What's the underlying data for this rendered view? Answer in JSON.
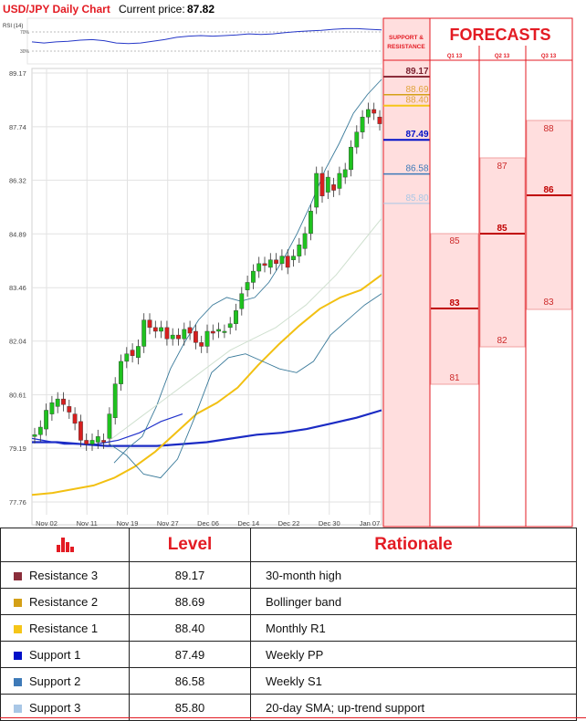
{
  "header": {
    "title": "USD/JPY Daily Chart",
    "price_label": "Current price:",
    "price_value": "87.82"
  },
  "colors": {
    "accent": "#e31b23",
    "resistance3": "#8b2e3b",
    "resistance2": "#d4a017",
    "resistance1": "#f5c518",
    "support1": "#0010c8",
    "support2": "#3e7ab8",
    "support3": "#a9c7e6"
  },
  "rsi": {
    "label": "RSI (14)",
    "upper_tick": "70%",
    "lower_tick": "30%"
  },
  "panel": {
    "sr_header_line1": "SUPPORT &",
    "sr_header_line2": "RESISTANCE",
    "forecasts_title": "FORECASTS",
    "quarters": [
      "Q1 13",
      "Q2 13",
      "Q3 13"
    ]
  },
  "chart_data": {
    "type": "candlestick",
    "title": "USD/JPY Daily Chart",
    "y_ticks": [
      "89.17",
      "87.74",
      "86.32",
      "84.89",
      "83.46",
      "82.04",
      "80.61",
      "79.19",
      "77.76"
    ],
    "x_ticks": [
      "Nov 02",
      "Nov 11",
      "Nov 19",
      "Nov 27",
      "Dec 06",
      "Dec 14",
      "Dec 22",
      "Dec 30",
      "Jan 07"
    ],
    "ylim": [
      77.76,
      89.17
    ],
    "candles": [
      {
        "o": 79.5,
        "c": 79.55
      },
      {
        "o": 79.55,
        "c": 79.75
      },
      {
        "o": 79.7,
        "c": 80.2
      },
      {
        "o": 80.1,
        "c": 80.4
      },
      {
        "o": 80.3,
        "c": 80.5
      },
      {
        "o": 80.5,
        "c": 80.35
      },
      {
        "o": 80.3,
        "c": 80.15
      },
      {
        "o": 80.1,
        "c": 79.85
      },
      {
        "o": 79.9,
        "c": 79.4
      },
      {
        "o": 79.4,
        "c": 79.3
      },
      {
        "o": 79.3,
        "c": 79.4
      },
      {
        "o": 79.35,
        "c": 79.5
      },
      {
        "o": 79.4,
        "c": 79.35
      },
      {
        "o": 79.45,
        "c": 80.1
      },
      {
        "o": 80.0,
        "c": 80.9
      },
      {
        "o": 80.9,
        "c": 81.5
      },
      {
        "o": 81.5,
        "c": 81.7
      },
      {
        "o": 81.8,
        "c": 81.65
      },
      {
        "o": 81.6,
        "c": 81.9
      },
      {
        "o": 81.9,
        "c": 82.6
      },
      {
        "o": 82.6,
        "c": 82.4
      },
      {
        "o": 82.4,
        "c": 82.3
      },
      {
        "o": 82.3,
        "c": 82.4
      },
      {
        "o": 82.4,
        "c": 82.1
      },
      {
        "o": 82.1,
        "c": 82.2
      },
      {
        "o": 82.2,
        "c": 82.1
      },
      {
        "o": 82.1,
        "c": 82.35
      },
      {
        "o": 82.4,
        "c": 82.25
      },
      {
        "o": 82.3,
        "c": 82.0
      },
      {
        "o": 82.0,
        "c": 81.9
      },
      {
        "o": 81.9,
        "c": 82.3
      },
      {
        "o": 82.3,
        "c": 82.25
      },
      {
        "o": 82.3,
        "c": 82.35
      },
      {
        "o": 82.3,
        "c": 82.3
      },
      {
        "o": 82.4,
        "c": 82.5
      },
      {
        "o": 82.5,
        "c": 82.85
      },
      {
        "o": 82.9,
        "c": 83.3
      },
      {
        "o": 83.4,
        "c": 83.6
      },
      {
        "o": 83.6,
        "c": 83.9
      },
      {
        "o": 83.9,
        "c": 84.1
      },
      {
        "o": 84.1,
        "c": 84.05
      },
      {
        "o": 84.0,
        "c": 84.2
      },
      {
        "o": 84.2,
        "c": 84.1
      },
      {
        "o": 84.1,
        "c": 84.3
      },
      {
        "o": 84.3,
        "c": 84.0
      },
      {
        "o": 84.2,
        "c": 84.3
      },
      {
        "o": 84.3,
        "c": 84.6
      },
      {
        "o": 84.5,
        "c": 84.9
      },
      {
        "o": 84.9,
        "c": 85.5
      },
      {
        "o": 85.6,
        "c": 86.5
      },
      {
        "o": 86.5,
        "c": 85.9
      },
      {
        "o": 86.0,
        "c": 86.4
      },
      {
        "o": 86.2,
        "c": 86.05
      },
      {
        "o": 86.1,
        "c": 86.5
      },
      {
        "o": 86.4,
        "c": 86.6
      },
      {
        "o": 86.6,
        "c": 87.2
      },
      {
        "o": 87.2,
        "c": 87.6
      },
      {
        "o": 87.6,
        "c": 88.0
      },
      {
        "o": 88.0,
        "c": 88.2
      },
      {
        "o": 88.2,
        "c": 88.1
      },
      {
        "o": 88.0,
        "c": 87.82
      }
    ],
    "series": [
      {
        "values": [
          79.35,
          79.35,
          79.3,
          79.25,
          79.25,
          79.25,
          79.3,
          79.35,
          79.45,
          79.55,
          79.6,
          79.7,
          79.85,
          80.0,
          80.2
        ]
      },
      {
        "values": [
          77.95,
          78.0,
          78.1,
          78.2,
          78.4,
          78.7,
          79.1,
          79.6,
          80.1,
          80.4,
          80.8,
          81.4,
          81.95,
          82.45,
          82.9,
          83.2,
          83.4,
          83.8
        ]
      },
      {
        "values": [
          79.45,
          79.4,
          79.35,
          79.3,
          79.3,
          79.3,
          79.3,
          79.35,
          79.4,
          79.5,
          79.6,
          79.75,
          79.9,
          80.0,
          80.1
        ]
      },
      {
        "values": [
          78.8,
          79.2,
          79.5,
          80.3,
          81.3,
          82.0,
          82.6,
          83.0,
          83.2,
          83.1,
          83.2,
          83.6,
          84.2,
          84.9,
          85.7,
          86.6,
          87.3,
          88.1,
          88.6,
          89.0
        ]
      },
      {
        "values": [
          79.3,
          79.0,
          78.5,
          78.4,
          78.9,
          80.0,
          81.2,
          81.6,
          81.7,
          81.5,
          81.3,
          81.2,
          81.5,
          82.2,
          82.6,
          83.0,
          83.3
        ]
      },
      {
        "values": [
          79.4,
          79.7,
          80.0,
          80.3,
          80.6,
          80.9,
          81.2,
          81.5,
          81.8,
          82.0,
          82.2,
          82.4,
          82.7,
          83.0,
          83.4,
          83.8,
          84.3,
          84.8,
          85.3
        ]
      }
    ],
    "rsi_values": [
      52,
      50,
      52,
      53,
      55,
      56,
      54,
      50,
      49,
      50,
      53,
      56,
      60,
      62,
      63,
      62,
      63,
      64,
      66,
      65,
      66,
      68,
      70,
      71,
      72,
      74,
      75,
      75,
      74,
      73
    ]
  },
  "levels": [
    {
      "label": "89.17",
      "key": "r3"
    },
    {
      "label": "88.69",
      "key": "r2"
    },
    {
      "label": "88.40",
      "key": "r1"
    },
    {
      "label": "87.49",
      "key": "s1"
    },
    {
      "label": "86.58",
      "key": "s2"
    },
    {
      "label": "85.80",
      "key": "s3"
    }
  ],
  "forecasts": {
    "q1": {
      "high": "85",
      "main": "83",
      "low": "81"
    },
    "q2": {
      "high": "87",
      "main": "85",
      "low": "82"
    },
    "q3": {
      "high": "88",
      "main": "86",
      "low": "83"
    }
  },
  "table": {
    "level_header": "Level",
    "rationale_header": "Rationale",
    "rows": [
      {
        "name": "Resistance 3",
        "level": "89.17",
        "rationale": "30-month high"
      },
      {
        "name": "Resistance 2",
        "level": "88.69",
        "rationale": "Bollinger band"
      },
      {
        "name": "Resistance 1",
        "level": "88.40",
        "rationale": "Monthly R1"
      },
      {
        "name": "Support 1",
        "level": "87.49",
        "rationale": "Weekly PP"
      },
      {
        "name": "Support 2",
        "level": "86.58",
        "rationale": "Weekly S1"
      },
      {
        "name": "Support 3",
        "level": "85.80",
        "rationale": "20-day SMA; up-trend support"
      }
    ]
  }
}
